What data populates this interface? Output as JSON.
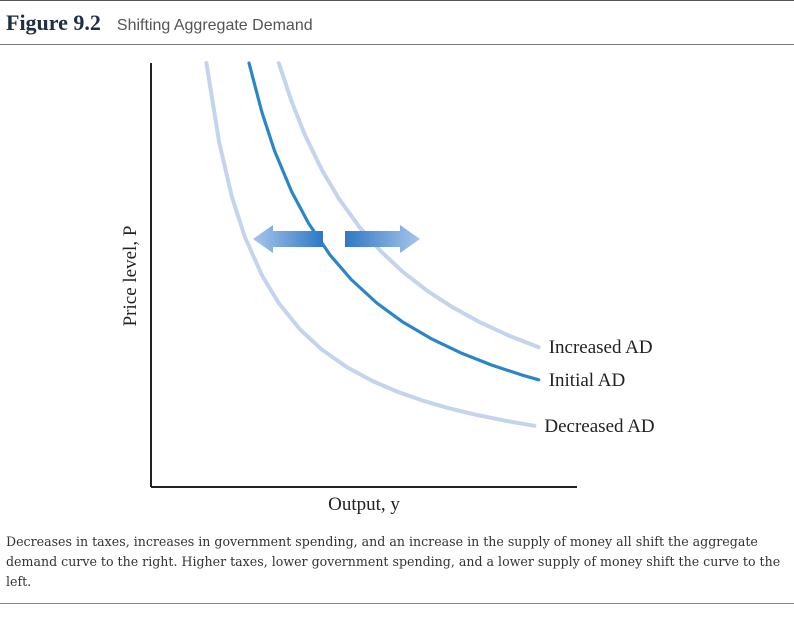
{
  "figure": {
    "number": "Figure 9.2",
    "title": "Shifting Aggregate Demand",
    "caption": "Decreases in taxes, increases in government spending, and an increase in the supply of money all shift the aggregate demand curve to the right. Higher taxes, lower government spending, and a lower supply of money shift the curve to the left."
  },
  "colors": {
    "initial": "#2b86c8",
    "shifted": "#c5d4ee",
    "arrow_light": "#a7c6ea",
    "arrow_dark": "#2f78c4",
    "axis": "#222222"
  },
  "chart_data": {
    "type": "line",
    "title": "Shifting Aggregate Demand",
    "xlabel": "Output, y",
    "ylabel": "Price level, P",
    "ticks": false,
    "grid": false,
    "series": [
      {
        "name": "Decreased AD",
        "style": "light",
        "k": 0.13,
        "x": [
          0.13,
          0.16,
          0.19,
          0.22,
          0.26,
          0.3,
          0.35,
          0.4,
          0.46,
          0.52,
          0.58,
          0.64,
          0.7,
          0.76,
          0.83,
          0.9
        ]
      },
      {
        "name": "Initial AD",
        "style": "dark",
        "k": 0.23,
        "x": [
          0.23,
          0.26,
          0.29,
          0.33,
          0.37,
          0.42,
          0.47,
          0.53,
          0.59,
          0.66,
          0.73,
          0.8,
          0.87,
          0.91
        ]
      },
      {
        "name": "Increased AD",
        "style": "light",
        "k": 0.3,
        "x": [
          0.3,
          0.33,
          0.36,
          0.4,
          0.44,
          0.49,
          0.54,
          0.59,
          0.65,
          0.71,
          0.77,
          0.84,
          0.91
        ]
      }
    ],
    "arrows": [
      {
        "direction": "left",
        "meaning": "decrease in aggregate demand"
      },
      {
        "direction": "right",
        "meaning": "increase in aggregate demand"
      }
    ]
  }
}
